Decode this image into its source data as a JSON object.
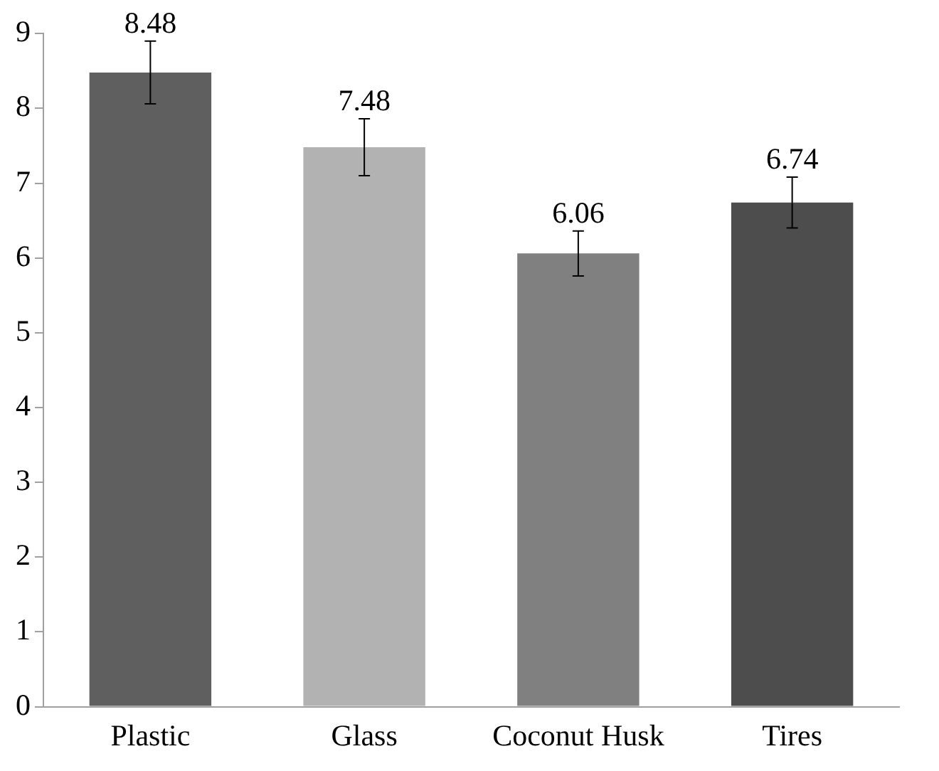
{
  "chart_data": {
    "type": "bar",
    "categories": [
      "Plastic",
      "Glass",
      "Coconut Husk",
      "Tires"
    ],
    "values": [
      8.48,
      7.48,
      6.06,
      6.74
    ],
    "colors": [
      "#5f5f5f",
      "#b2b2b2",
      "#808080",
      "#4d4d4d"
    ],
    "errors": [
      0.42,
      0.38,
      0.3,
      0.34
    ],
    "data_labels": true,
    "ylim": [
      0,
      9
    ],
    "yticks": [
      0,
      1,
      2,
      3,
      4,
      5,
      6,
      7,
      8,
      9
    ],
    "grid": false,
    "legend": false
  }
}
